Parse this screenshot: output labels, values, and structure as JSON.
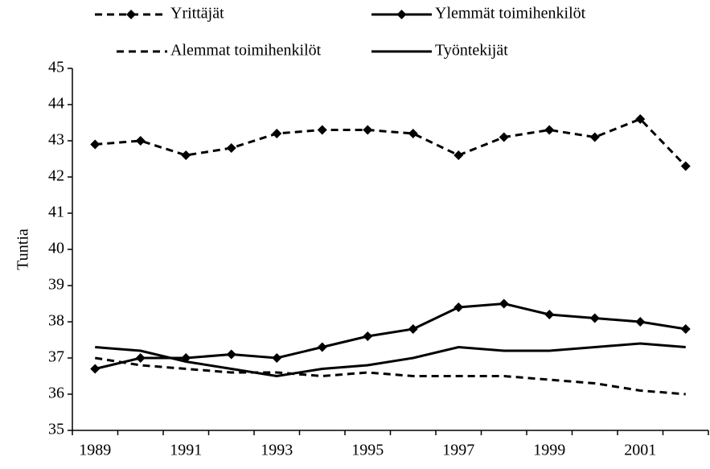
{
  "chart_data": {
    "type": "line",
    "ylabel": "Tuntia",
    "categories": [
      "1989",
      null,
      "1991",
      null,
      "1993",
      null,
      "1995",
      null,
      "1997",
      null,
      "1999",
      null,
      "2001",
      null
    ],
    "series": [
      {
        "name": "Yrittäjät",
        "color": "#000000",
        "dashed": true,
        "marker": "diamond",
        "values": [
          42.9,
          43.0,
          42.6,
          42.8,
          43.2,
          43.3,
          43.3,
          43.2,
          42.6,
          43.1,
          43.3,
          43.1,
          43.6,
          42.3
        ]
      },
      {
        "name": "Ylemmät toimihenkilöt",
        "color": "#000000",
        "dashed": false,
        "marker": "diamond",
        "values": [
          36.7,
          37.0,
          37.0,
          37.1,
          37.0,
          37.3,
          37.6,
          37.8,
          38.4,
          38.5,
          38.2,
          38.1,
          38.0,
          37.8
        ]
      },
      {
        "name": "Alemmat toimihenkilöt",
        "color": "#000000",
        "dashed": true,
        "marker": null,
        "values": [
          37.0,
          36.8,
          36.7,
          36.6,
          36.6,
          36.5,
          36.6,
          36.5,
          36.5,
          36.5,
          36.4,
          36.3,
          36.1,
          36.0
        ]
      },
      {
        "name": "Työntekijät",
        "color": "#000000",
        "dashed": false,
        "marker": null,
        "values": [
          37.3,
          37.2,
          36.9,
          36.7,
          36.5,
          36.7,
          36.8,
          37.0,
          37.3,
          37.2,
          37.2,
          37.3,
          37.4,
          37.3
        ]
      }
    ],
    "ylim": [
      35,
      45
    ],
    "yticks": [
      35,
      36,
      37,
      38,
      39,
      40,
      41,
      42,
      43,
      44,
      45
    ],
    "grid": false
  }
}
